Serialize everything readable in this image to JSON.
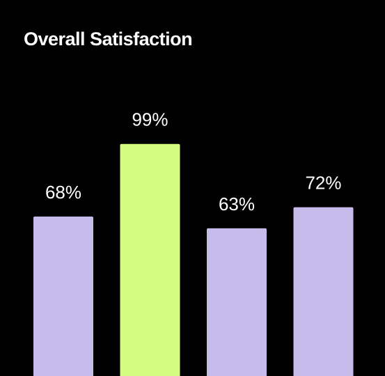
{
  "chart_data": {
    "type": "bar",
    "title": "Overall Satisfaction",
    "categories": [
      "",
      "",
      "",
      ""
    ],
    "values": [
      68,
      99,
      63,
      72
    ],
    "value_labels": [
      "68%",
      "99%",
      "63%",
      "72%"
    ],
    "bar_colors": [
      "#c6bbea",
      "#d4fc7f",
      "#c6bbea",
      "#c6bbea"
    ],
    "background": "#000000",
    "text_color": "#ffffff",
    "ylim": [
      0,
      100
    ],
    "grid": false,
    "legend": "none"
  }
}
